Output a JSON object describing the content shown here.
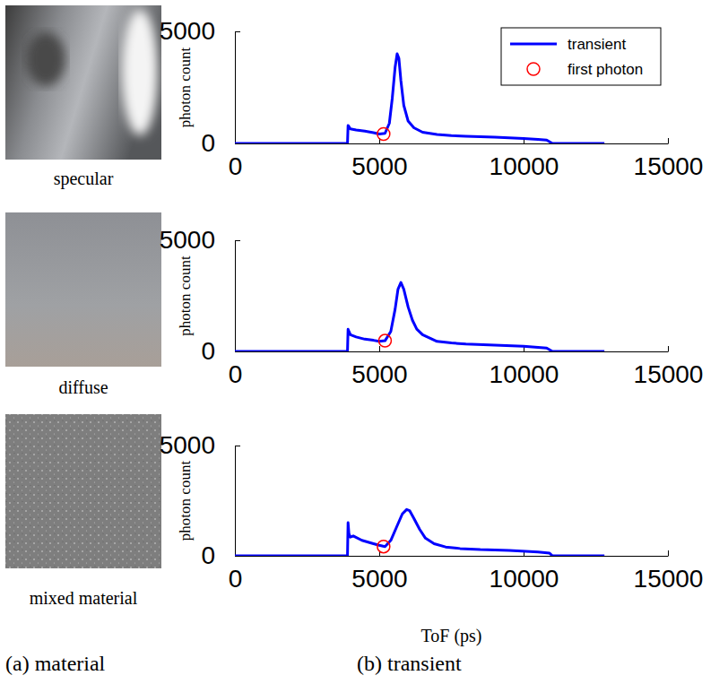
{
  "materials": [
    "specular",
    "diffuse",
    "mixed material"
  ],
  "captions": [
    "(a) material",
    "(b) transient"
  ],
  "chart_data": [
    {
      "type": "line",
      "ylabel": "photon count",
      "xlim": [
        0,
        15000
      ],
      "ylim": [
        0,
        5000
      ],
      "xticks": [
        0,
        5000,
        10000,
        15000
      ],
      "yticks": [
        0,
        5000
      ],
      "legend": "upper right",
      "series": [
        {
          "name": "transient",
          "color": "#0000ff",
          "type": "line",
          "x": [
            0,
            3900,
            3920,
            3950,
            4000,
            4200,
            4500,
            4800,
            5000,
            5200,
            5350,
            5450,
            5550,
            5620,
            5680,
            5750,
            5850,
            6000,
            6200,
            6500,
            7000,
            7500,
            8000,
            9000,
            10000,
            10500,
            10800,
            11000,
            11100,
            12800
          ],
          "values": [
            0,
            0,
            800,
            750,
            650,
            600,
            550,
            480,
            420,
            450,
            900,
            2000,
            3400,
            4000,
            3800,
            2800,
            1700,
            1000,
            700,
            500,
            400,
            350,
            320,
            280,
            220,
            180,
            150,
            0,
            0,
            0
          ]
        },
        {
          "name": "first photon",
          "color": "#ff0000",
          "type": "scatter",
          "marker": "circle",
          "x": [
            5150
          ],
          "values": [
            420
          ]
        }
      ]
    },
    {
      "type": "line",
      "ylabel": "photon count",
      "xlim": [
        0,
        15000
      ],
      "ylim": [
        0,
        5000
      ],
      "xticks": [
        0,
        5000,
        10000,
        15000
      ],
      "yticks": [
        0,
        5000
      ],
      "series": [
        {
          "name": "transient",
          "color": "#0000ff",
          "type": "line",
          "x": [
            0,
            3900,
            3920,
            3950,
            4000,
            4200,
            4500,
            4800,
            5000,
            5200,
            5400,
            5550,
            5650,
            5750,
            5850,
            6000,
            6150,
            6300,
            6500,
            7000,
            7500,
            8000,
            9000,
            10000,
            10800,
            11000,
            11100,
            12800
          ],
          "values": [
            0,
            0,
            1000,
            900,
            750,
            650,
            550,
            500,
            450,
            480,
            900,
            1900,
            2800,
            3100,
            2800,
            2000,
            1400,
            1000,
            750,
            450,
            380,
            330,
            280,
            230,
            150,
            0,
            0,
            0
          ]
        },
        {
          "name": "first photon",
          "color": "#ff0000",
          "type": "scatter",
          "marker": "circle",
          "x": [
            5200
          ],
          "values": [
            480
          ]
        }
      ]
    },
    {
      "type": "line",
      "ylabel": "photon count",
      "xlabel": "ToF (ps)",
      "xlim": [
        0,
        15000
      ],
      "ylim": [
        0,
        5000
      ],
      "xticks": [
        0,
        5000,
        10000,
        15000
      ],
      "yticks": [
        0,
        5000
      ],
      "series": [
        {
          "name": "transient",
          "color": "#0000ff",
          "type": "line",
          "x": [
            0,
            3900,
            3920,
            3950,
            4000,
            4100,
            4400,
            4800,
            5000,
            5200,
            5400,
            5600,
            5800,
            5950,
            6050,
            6200,
            6400,
            6600,
            6900,
            7300,
            7800,
            8500,
            9500,
            10500,
            10900,
            11000,
            11100,
            12800
          ],
          "values": [
            0,
            0,
            1500,
            1000,
            850,
            900,
            700,
            550,
            480,
            420,
            700,
            1300,
            1900,
            2100,
            2050,
            1700,
            1200,
            800,
            550,
            400,
            330,
            280,
            240,
            170,
            120,
            0,
            0,
            0
          ]
        },
        {
          "name": "first photon",
          "color": "#ff0000",
          "type": "scatter",
          "marker": "circle",
          "x": [
            5150
          ],
          "values": [
            420
          ]
        }
      ]
    }
  ]
}
